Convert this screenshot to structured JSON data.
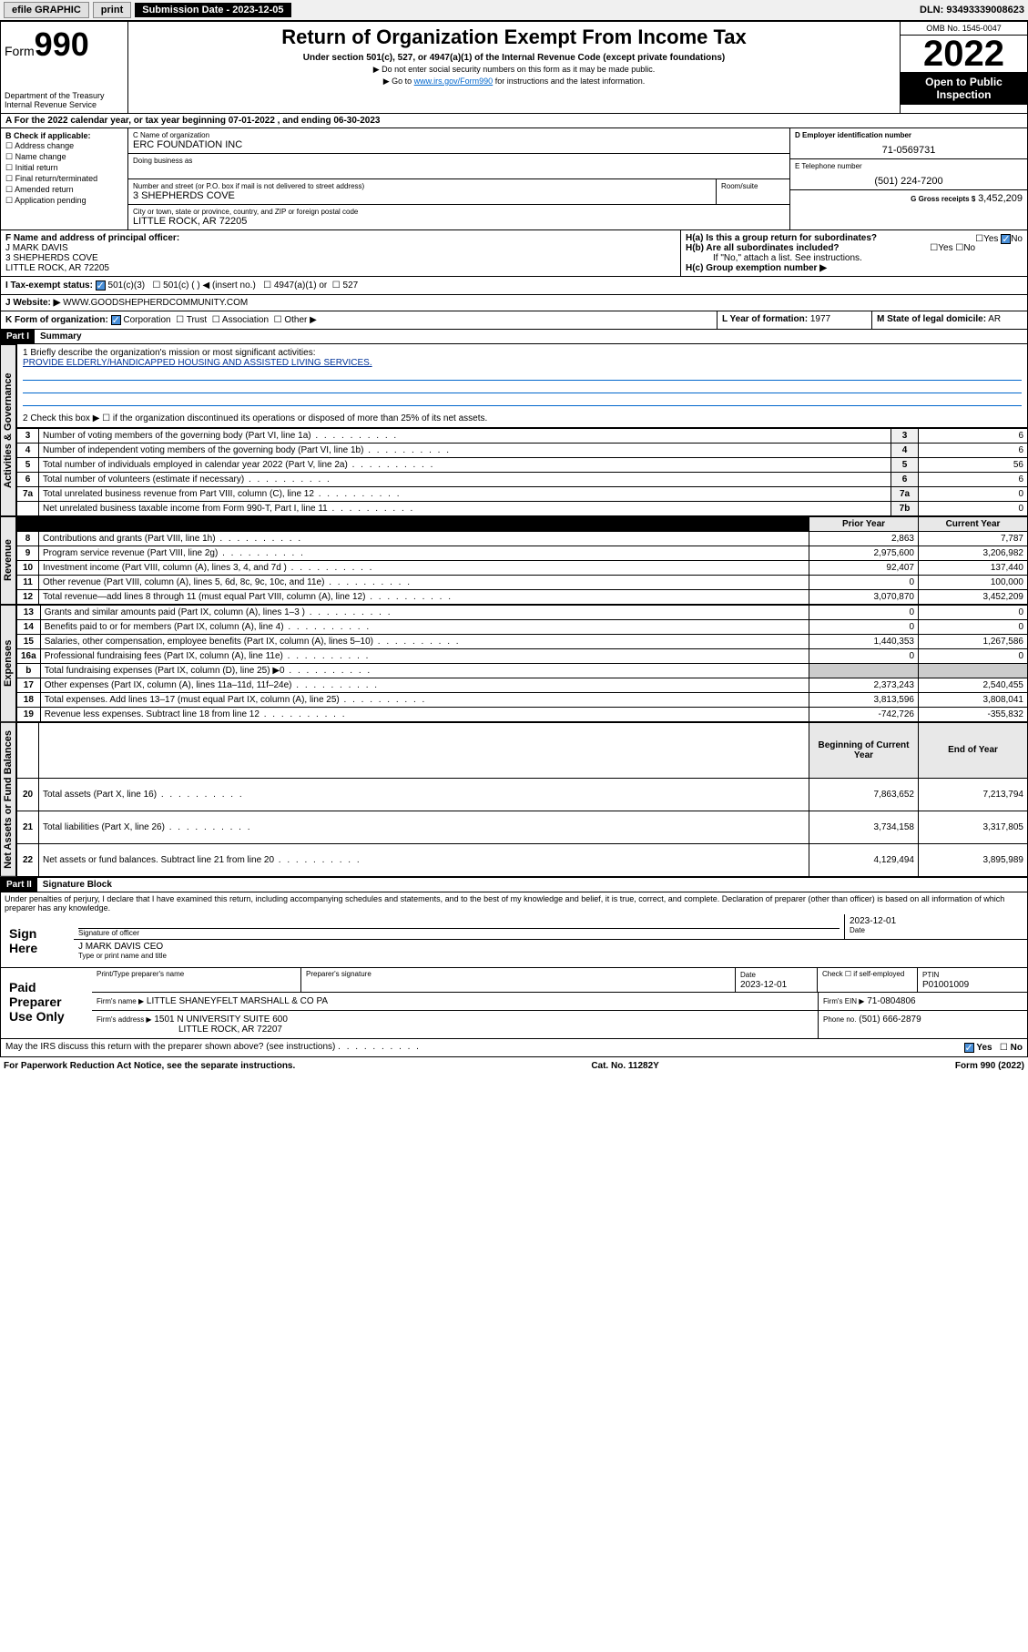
{
  "topbar": {
    "efile": "efile GRAPHIC",
    "print": "print",
    "sub_label": "Submission Date - 2023-12-05",
    "dln": "DLN: 93493339008623"
  },
  "header": {
    "form_label": "Form",
    "form_num": "990",
    "dept": "Department of the Treasury",
    "irs": "Internal Revenue Service",
    "title": "Return of Organization Exempt From Income Tax",
    "sub": "Under section 501(c), 527, or 4947(a)(1) of the Internal Revenue Code (except private foundations)",
    "note1": "▶ Do not enter social security numbers on this form as it may be made public.",
    "note2_pre": "▶ Go to ",
    "note2_link": "www.irs.gov/Form990",
    "note2_post": " for instructions and the latest information.",
    "omb": "OMB No. 1545-0047",
    "year": "2022",
    "inspect": "Open to Public Inspection"
  },
  "period": {
    "text_a": "A For the 2022 calendar year, or tax year beginning ",
    "begin": "07-01-2022",
    "text_b": " , and ending ",
    "end": "06-30-2023"
  },
  "boxB": {
    "label": "B Check if applicable:",
    "opts": [
      "Address change",
      "Name change",
      "Initial return",
      "Final return/terminated",
      "Amended return",
      "Application pending"
    ]
  },
  "boxC": {
    "label": "C Name of organization",
    "name": "ERC FOUNDATION INC",
    "dba_label": "Doing business as",
    "addr_label": "Number and street (or P.O. box if mail is not delivered to street address)",
    "room_label": "Room/suite",
    "addr": "3 SHEPHERDS COVE",
    "city_label": "City or town, state or province, country, and ZIP or foreign postal code",
    "city": "LITTLE ROCK, AR  72205"
  },
  "boxD": {
    "label": "D Employer identification number",
    "val": "71-0569731"
  },
  "boxE": {
    "label": "E Telephone number",
    "val": "(501) 224-7200"
  },
  "boxG": {
    "label": "G Gross receipts $",
    "val": "3,452,209"
  },
  "boxF": {
    "label": "F Name and address of principal officer:",
    "name": "J MARK DAVIS",
    "addr1": "3 SHEPHERDS COVE",
    "addr2": "LITTLE ROCK, AR  72205"
  },
  "boxH": {
    "ha": "H(a)  Is this a group return for subordinates?",
    "hb": "H(b)  Are all subordinates included?",
    "hb_note": "If \"No,\" attach a list. See instructions.",
    "hc": "H(c)  Group exemption number ▶",
    "yes": "Yes",
    "no": "No"
  },
  "taxI": {
    "label": "I   Tax-exempt status:",
    "o1": "501(c)(3)",
    "o2": "501(c) (  ) ◀ (insert no.)",
    "o3": "4947(a)(1) or",
    "o4": "527"
  },
  "boxJ": {
    "label": "J   Website: ▶",
    "val": "WWW.GOODSHEPHERDCOMMUNITY.COM"
  },
  "boxK": {
    "label": "K Form of organization:",
    "corp": "Corporation",
    "trust": "Trust",
    "assoc": "Association",
    "other": "Other ▶"
  },
  "boxL": {
    "label": "L Year of formation:",
    "val": "1977"
  },
  "boxM": {
    "label": "M State of legal domicile:",
    "val": "AR"
  },
  "partI": {
    "hdr": "Part I",
    "title": "Summary",
    "l1_label": "1  Briefly describe the organization's mission or most significant activities:",
    "l1_val": "PROVIDE ELDERLY/HANDICAPPED HOUSING AND ASSISTED LIVING SERVICES.",
    "l2": "2   Check this box ▶ ☐  if the organization discontinued its operations or disposed of more than 25% of its net assets."
  },
  "vtabs": {
    "gov": "Activities & Governance",
    "rev": "Revenue",
    "exp": "Expenses",
    "net": "Net Assets or Fund Balances"
  },
  "cols": {
    "prior": "Prior Year",
    "current": "Current Year",
    "begin": "Beginning of Current Year",
    "end": "End of Year"
  },
  "gov_rows": [
    {
      "n": "3",
      "t": "Number of voting members of the governing body (Part VI, line 1a)",
      "nc": "3",
      "v": "6"
    },
    {
      "n": "4",
      "t": "Number of independent voting members of the governing body (Part VI, line 1b)",
      "nc": "4",
      "v": "6"
    },
    {
      "n": "5",
      "t": "Total number of individuals employed in calendar year 2022 (Part V, line 2a)",
      "nc": "5",
      "v": "56"
    },
    {
      "n": "6",
      "t": "Total number of volunteers (estimate if necessary)",
      "nc": "6",
      "v": "6"
    },
    {
      "n": "7a",
      "t": "Total unrelated business revenue from Part VIII, column (C), line 12",
      "nc": "7a",
      "v": "0"
    },
    {
      "n": "",
      "t": "Net unrelated business taxable income from Form 990-T, Part I, line 11",
      "nc": "7b",
      "v": "0"
    }
  ],
  "rev_rows": [
    {
      "n": "8",
      "t": "Contributions and grants (Part VIII, line 1h)",
      "p": "2,863",
      "c": "7,787"
    },
    {
      "n": "9",
      "t": "Program service revenue (Part VIII, line 2g)",
      "p": "2,975,600",
      "c": "3,206,982"
    },
    {
      "n": "10",
      "t": "Investment income (Part VIII, column (A), lines 3, 4, and 7d )",
      "p": "92,407",
      "c": "137,440"
    },
    {
      "n": "11",
      "t": "Other revenue (Part VIII, column (A), lines 5, 6d, 8c, 9c, 10c, and 11e)",
      "p": "0",
      "c": "100,000"
    },
    {
      "n": "12",
      "t": "Total revenue—add lines 8 through 11 (must equal Part VIII, column (A), line 12)",
      "p": "3,070,870",
      "c": "3,452,209"
    }
  ],
  "exp_rows": [
    {
      "n": "13",
      "t": "Grants and similar amounts paid (Part IX, column (A), lines 1–3 )",
      "p": "0",
      "c": "0"
    },
    {
      "n": "14",
      "t": "Benefits paid to or for members (Part IX, column (A), line 4)",
      "p": "0",
      "c": "0"
    },
    {
      "n": "15",
      "t": "Salaries, other compensation, employee benefits (Part IX, column (A), lines 5–10)",
      "p": "1,440,353",
      "c": "1,267,586"
    },
    {
      "n": "16a",
      "t": "Professional fundraising fees (Part IX, column (A), line 11e)",
      "p": "0",
      "c": "0"
    },
    {
      "n": "b",
      "t": "Total fundraising expenses (Part IX, column (D), line 25) ▶0",
      "p": "",
      "c": ""
    },
    {
      "n": "17",
      "t": "Other expenses (Part IX, column (A), lines 11a–11d, 11f–24e)",
      "p": "2,373,243",
      "c": "2,540,455"
    },
    {
      "n": "18",
      "t": "Total expenses. Add lines 13–17 (must equal Part IX, column (A), line 25)",
      "p": "3,813,596",
      "c": "3,808,041"
    },
    {
      "n": "19",
      "t": "Revenue less expenses. Subtract line 18 from line 12",
      "p": "-742,726",
      "c": "-355,832"
    }
  ],
  "net_rows": [
    {
      "n": "20",
      "t": "Total assets (Part X, line 16)",
      "p": "7,863,652",
      "c": "7,213,794"
    },
    {
      "n": "21",
      "t": "Total liabilities (Part X, line 26)",
      "p": "3,734,158",
      "c": "3,317,805"
    },
    {
      "n": "22",
      "t": "Net assets or fund balances. Subtract line 21 from line 20",
      "p": "4,129,494",
      "c": "3,895,989"
    }
  ],
  "partII": {
    "hdr": "Part II",
    "title": "Signature Block",
    "decl": "Under penalties of perjury, I declare that I have examined this return, including accompanying schedules and statements, and to the best of my knowledge and belief, it is true, correct, and complete. Declaration of preparer (other than officer) is based on all information of which preparer has any knowledge.",
    "sign_here": "Sign Here",
    "sig_officer": "Signature of officer",
    "date": "Date",
    "sig_date": "2023-12-01",
    "officer_name": "J MARK DAVIS CEO",
    "type_name": "Type or print name and title",
    "paid": "Paid Preparer Use Only",
    "prep_name_label": "Print/Type preparer's name",
    "prep_sig_label": "Preparer's signature",
    "prep_date": "2023-12-01",
    "self_emp": "Check ☐ if self-employed",
    "ptin_label": "PTIN",
    "ptin": "P01001009",
    "firm_name_label": "Firm's name   ▶",
    "firm_name": "LITTLE SHANEYFELT MARSHALL & CO PA",
    "firm_ein_label": "Firm's EIN ▶",
    "firm_ein": "71-0804806",
    "firm_addr_label": "Firm's address ▶",
    "firm_addr1": "1501 N UNIVERSITY SUITE 600",
    "firm_addr2": "LITTLE ROCK, AR  72207",
    "phone_label": "Phone no.",
    "phone": "(501) 666-2879",
    "discuss": "May the IRS discuss this return with the preparer shown above? (see instructions)"
  },
  "footer": {
    "pra": "For Paperwork Reduction Act Notice, see the separate instructions.",
    "cat": "Cat. No. 11282Y",
    "form": "Form 990 (2022)"
  },
  "colors": {
    "link": "#0066cc",
    "check": "#4a90d9"
  }
}
